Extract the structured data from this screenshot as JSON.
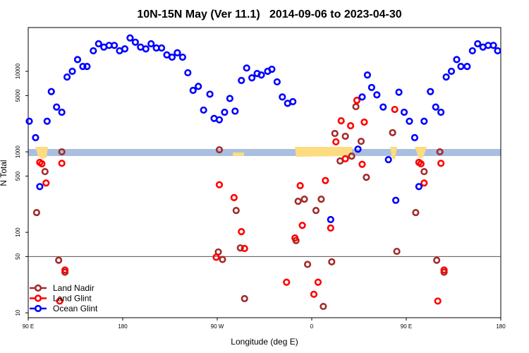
{
  "chart_data": {
    "type": "scatter",
    "title": "10N-15N May (Ver 11.1)   2014-09-06 to 2023-04-30",
    "x_label": "Longitude (deg E)",
    "y_label": "N Total",
    "log_y": true,
    "legend": "lower left",
    "xlim": [
      90,
      540
    ],
    "xticks": [
      {
        "value": 90,
        "label": "90 E"
      },
      180,
      {
        "value": 270,
        "label": "90 W"
      },
      {
        "value": 360,
        "label": "0"
      },
      {
        "value": 450,
        "label": "90 E"
      },
      {
        "value": 540,
        "label": "180"
      }
    ],
    "ylim": [
      8.7,
      35000
    ],
    "yticks": [
      10,
      50,
      100,
      500,
      1000,
      5000,
      10000
    ],
    "hline": 50,
    "series": [
      {
        "name": "Land Nadir",
        "color": "#a52a2a",
        "x": [
          98,
          106,
          119,
          122,
          125,
          271,
          272,
          275,
          288,
          292,
          296,
          345,
          347,
          353,
          356,
          364,
          369,
          371,
          379,
          382,
          387,
          392,
          398,
          402,
          407,
          412,
          437,
          441,
          459,
          467,
          479,
          482,
          486
        ],
        "values": [
          176,
          568,
          45,
          1000,
          32,
          57,
          1060,
          46,
          187,
          64,
          15,
          79,
          243,
          258,
          40,
          187,
          258,
          12,
          43,
          1690,
          770,
          1560,
          885,
          3640,
          1350,
          483,
          1730,
          58,
          176,
          568,
          45,
          1000,
          32
        ]
      },
      {
        "name": "Land Glint",
        "color": "#ff0000",
        "x": [
          101,
          103,
          107,
          120,
          122,
          125,
          269,
          272,
          286,
          293,
          296,
          336,
          344,
          349,
          351,
          362,
          366,
          373,
          378,
          383,
          388,
          392,
          397,
          403,
          408,
          410,
          439,
          462,
          464,
          467,
          480,
          483,
          486
        ],
        "values": [
          740,
          710,
          410,
          14,
          720,
          34,
          49,
          390,
          270,
          102,
          63,
          24,
          85,
          380,
          122,
          17,
          24,
          440,
          113,
          1330,
          2430,
          820,
          2110,
          4360,
          700,
          2340,
          3360,
          740,
          710,
          410,
          14,
          720,
          34
        ]
      },
      {
        "name": "Ocean Glint",
        "color": "#0000ff",
        "x": [
          91,
          97,
          101,
          108,
          112,
          117,
          122,
          127,
          132,
          137,
          142,
          146,
          152,
          157,
          162,
          167,
          172,
          177,
          182,
          187,
          192,
          197,
          202,
          207,
          212,
          217,
          222,
          227,
          232,
          237,
          242,
          247,
          252,
          257,
          263,
          267,
          272,
          277,
          282,
          287,
          293,
          298,
          303,
          308,
          312,
          318,
          322,
          327,
          332,
          337,
          342,
          378,
          404,
          408,
          413,
          417,
          422,
          428,
          433,
          440,
          443,
          448,
          453,
          458,
          462,
          467,
          473,
          478,
          483,
          488,
          493,
          498,
          502,
          508,
          513,
          518,
          523,
          528,
          533,
          537
        ],
        "values": [
          2400,
          1500,
          370,
          2400,
          5600,
          3600,
          3100,
          8500,
          10000,
          14000,
          11500,
          11500,
          18000,
          22000,
          20000,
          21000,
          21000,
          18000,
          19000,
          26000,
          23000,
          20000,
          19000,
          22000,
          19500,
          19500,
          16000,
          15000,
          17000,
          15000,
          9600,
          5800,
          6500,
          3300,
          5200,
          2600,
          2500,
          3100,
          4600,
          3200,
          7700,
          11000,
          8300,
          9400,
          9000,
          10000,
          10600,
          7400,
          4800,
          4000,
          4200,
          144,
          1080,
          4800,
          9000,
          6300,
          5100,
          3600,
          800,
          250,
          5500,
          3100,
          2400,
          1500,
          370,
          2400,
          5600,
          3600,
          3100,
          8500,
          10000,
          14000,
          11500,
          11500,
          18000,
          22000,
          20000,
          21000,
          21000,
          18000
        ]
      }
    ]
  }
}
